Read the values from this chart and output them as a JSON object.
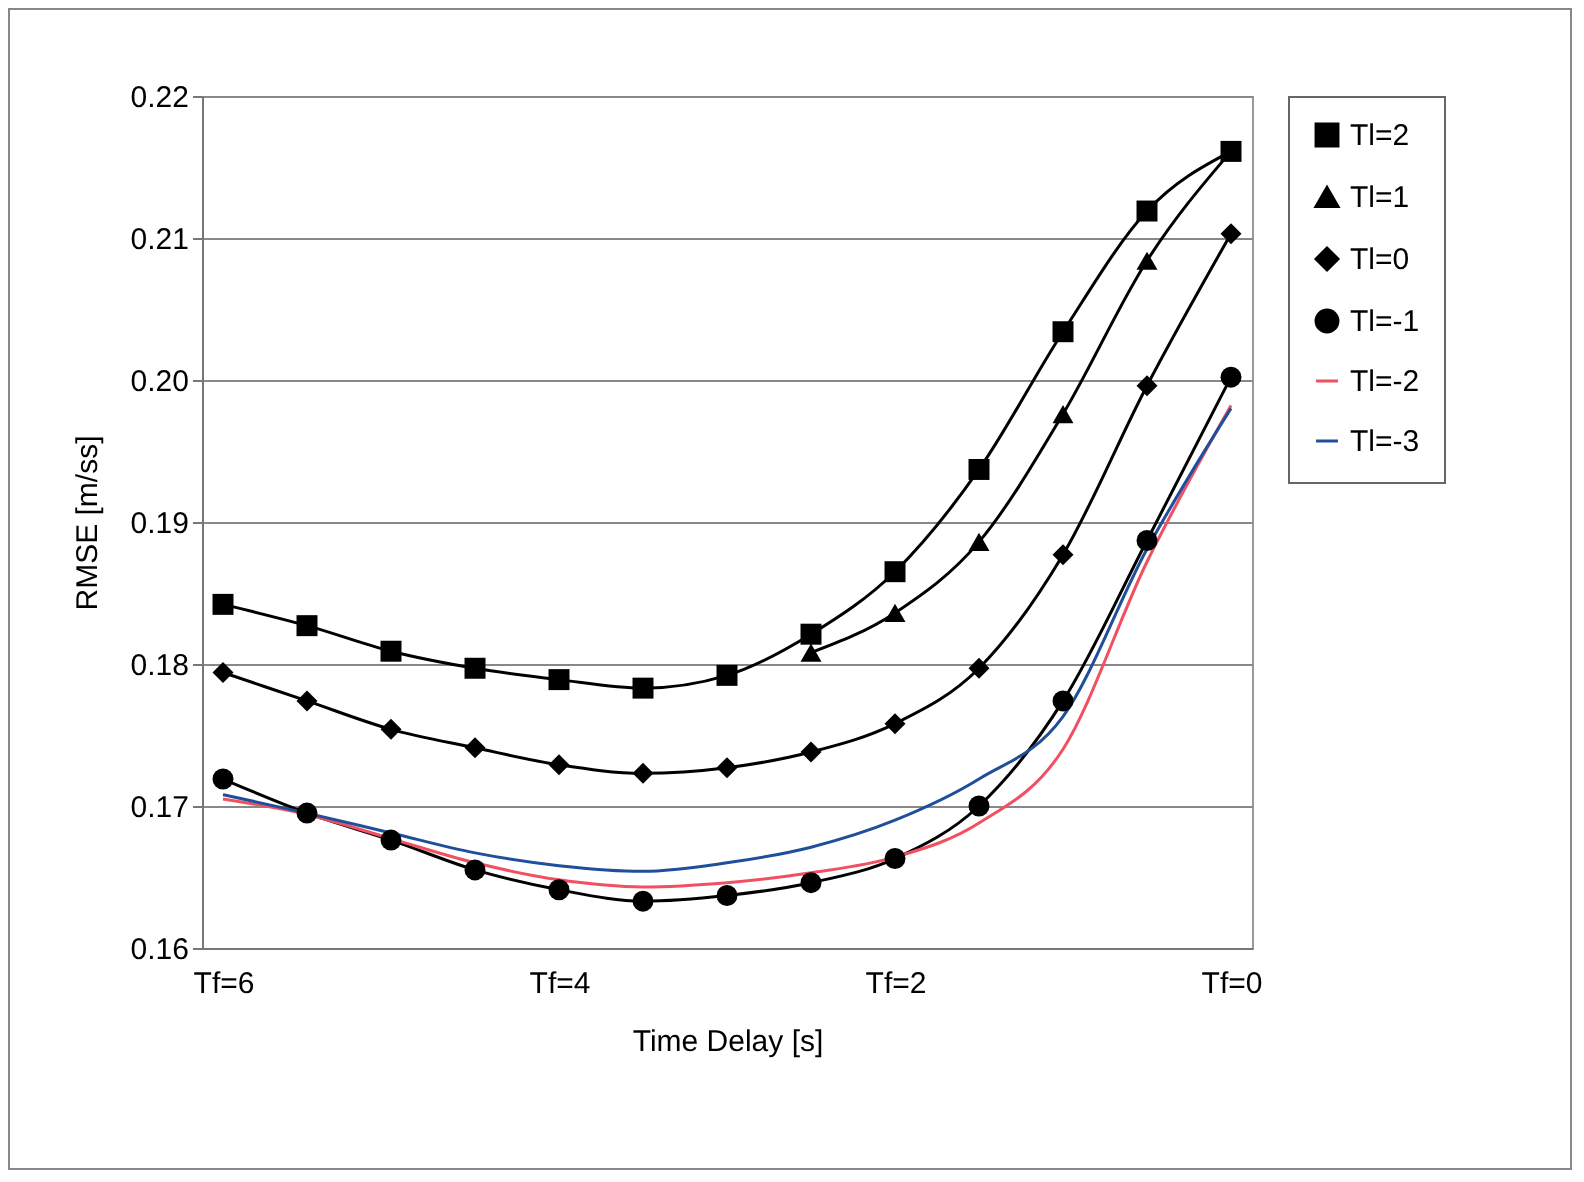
{
  "chart_data": {
    "type": "line",
    "xlabel": "Time Delay [s]",
    "ylabel": "RMSE [m/ss]",
    "categories": [
      "Tf=6",
      null,
      null,
      null,
      "Tf=4",
      null,
      null,
      null,
      "Tf=2",
      null,
      null,
      null,
      "Tf=0"
    ],
    "series": [
      {
        "name": "Tl=2",
        "color": "#000000",
        "marker": "square",
        "values": [
          0.1842,
          0.1827,
          0.1809,
          0.1797,
          0.1789,
          0.1783,
          0.1792,
          0.1821,
          0.1865,
          0.1937,
          0.2034,
          0.2119,
          0.2161
        ]
      },
      {
        "name": "Tl=1",
        "color": "#000000",
        "marker": "triangle",
        "values": [
          null,
          null,
          null,
          null,
          null,
          null,
          null,
          0.1808,
          0.1836,
          0.1886,
          0.1976,
          0.2084,
          0.2161
        ]
      },
      {
        "name": "Tl=0",
        "color": "#000000",
        "marker": "diamond",
        "values": [
          0.1794,
          0.1774,
          0.1754,
          0.1741,
          0.1729,
          0.1723,
          0.1727,
          0.1738,
          0.1758,
          0.1797,
          0.1877,
          0.1996,
          0.2103
        ]
      },
      {
        "name": "Tl=-1",
        "color": "#000000",
        "marker": "circle",
        "values": [
          0.1719,
          0.1695,
          0.1676,
          0.1655,
          0.1641,
          0.1633,
          0.1637,
          0.1646,
          0.1663,
          0.17,
          0.1774,
          0.1887,
          0.2002
        ]
      },
      {
        "name": "Tl=-2",
        "color": "#f05060",
        "marker": "none",
        "values": [
          0.1705,
          0.1694,
          0.1677,
          0.166,
          0.1648,
          0.1643,
          0.1646,
          0.1653,
          0.1664,
          0.1688,
          0.174,
          0.1872,
          0.1982
        ]
      },
      {
        "name": "Tl=-3",
        "color": "#1f4e9a",
        "marker": "none",
        "values": [
          0.1708,
          0.1695,
          0.1681,
          0.1667,
          0.1658,
          0.1654,
          0.166,
          0.1671,
          0.169,
          0.1719,
          0.1763,
          0.1881,
          0.198
        ]
      }
    ],
    "ylim": [
      0.16,
      0.22
    ],
    "yticks": [
      0.16,
      0.17,
      0.18,
      0.19,
      {
        "value": 0.2,
        "label": "0.20"
      },
      0.21,
      0.22
    ],
    "grid": "y",
    "legend": "right"
  }
}
